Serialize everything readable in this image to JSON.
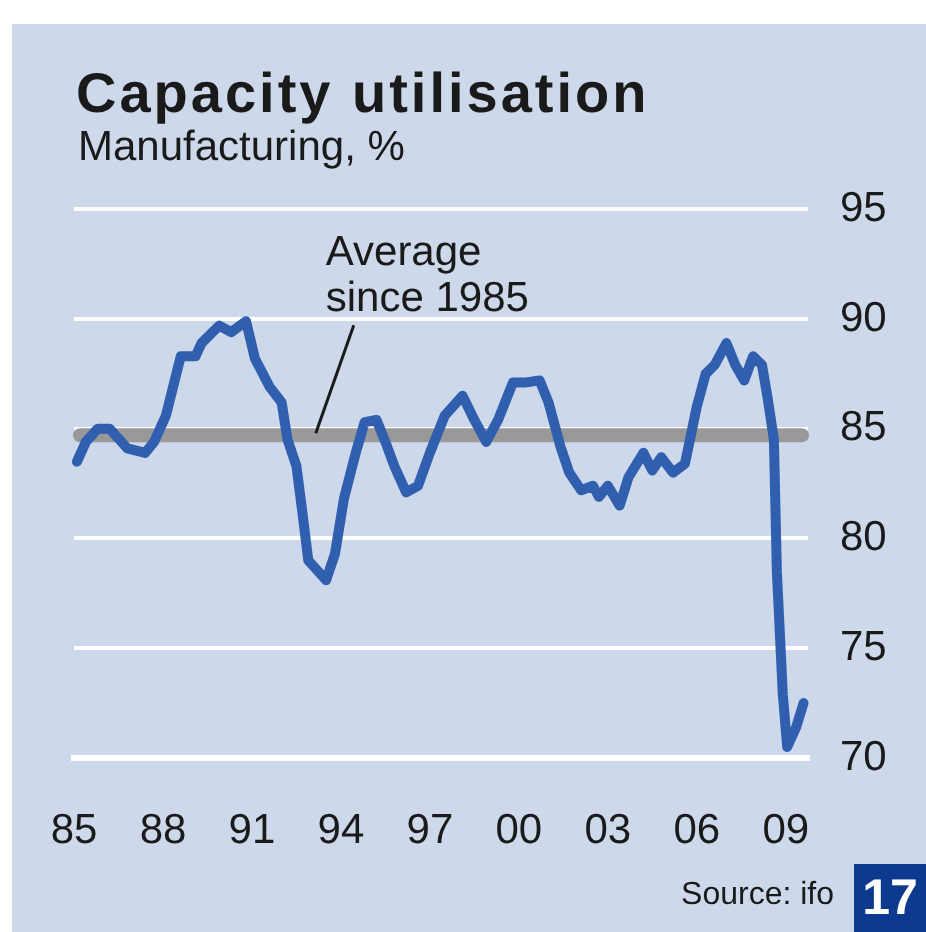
{
  "chart_data": {
    "type": "line",
    "title": "Capacity utilisation",
    "subtitle": "Manufacturing, %",
    "x": [
      1985.1,
      1985.4,
      1985.8,
      1986.2,
      1986.8,
      1987.4,
      1987.7,
      1988.1,
      1988.6,
      1989.1,
      1989.3,
      1989.9,
      1990.3,
      1990.8,
      1991.1,
      1991.6,
      1992.0,
      1992.2,
      1992.5,
      1992.7,
      1992.9,
      1993.1,
      1993.5,
      1993.8,
      1994.1,
      1994.5,
      1994.8,
      1995.2,
      1995.5,
      1995.8,
      1996.2,
      1996.6,
      1997.0,
      1997.5,
      1998.1,
      1998.5,
      1998.9,
      1999.3,
      1999.8,
      2000.2,
      2000.7,
      2001.0,
      2001.4,
      2001.7,
      2002.1,
      2002.5,
      2002.7,
      2003.0,
      2003.4,
      2003.7,
      2004.2,
      2004.5,
      2004.8,
      2005.2,
      2005.6,
      2006.0,
      2006.3,
      2006.6,
      2007.0,
      2007.3,
      2007.6,
      2007.9,
      2008.2,
      2008.4,
      2008.6,
      2008.7,
      2008.9,
      2009.05,
      2009.35,
      2009.6
    ],
    "values": [
      83.5,
      84.4,
      85.0,
      85.0,
      84.1,
      83.9,
      84.4,
      85.6,
      88.3,
      88.3,
      88.9,
      89.7,
      89.4,
      89.9,
      88.2,
      86.9,
      86.2,
      84.5,
      83.3,
      81.2,
      79.0,
      78.7,
      78.1,
      79.3,
      81.8,
      83.9,
      85.3,
      85.4,
      84.4,
      83.3,
      82.1,
      82.4,
      83.9,
      85.6,
      86.5,
      85.4,
      84.4,
      85.4,
      87.1,
      87.1,
      87.2,
      86.2,
      84.2,
      83.0,
      82.2,
      82.4,
      81.9,
      82.4,
      81.5,
      82.8,
      83.9,
      83.1,
      83.7,
      83.0,
      83.4,
      86.0,
      87.5,
      87.9,
      88.9,
      87.9,
      87.2,
      88.3,
      87.9,
      86.3,
      84.5,
      78.5,
      72.9,
      70.5,
      71.4,
      72.5
    ],
    "color": "#2f5fae",
    "xlim": [
      1985,
      2009.75
    ],
    "xticks": [
      {
        "value": 1985,
        "label": "85"
      },
      {
        "value": 1988,
        "label": "88"
      },
      {
        "value": 1991,
        "label": "91"
      },
      {
        "value": 1994,
        "label": "94"
      },
      {
        "value": 1997,
        "label": "97"
      },
      {
        "value": 2000,
        "label": "00"
      },
      {
        "value": 2003,
        "label": "03"
      },
      {
        "value": 2006,
        "label": "06"
      },
      {
        "value": 2009,
        "label": "09"
      }
    ],
    "ylim": [
      70,
      95
    ],
    "yticks": [
      70,
      75,
      80,
      85,
      90,
      95
    ],
    "grid": "y",
    "ref_lines": [
      {
        "axis": "y",
        "value": 84.7,
        "label": "Average since 1985",
        "color": "#999999"
      }
    ],
    "annotations": [
      "Source: ifo",
      "17"
    ]
  }
}
